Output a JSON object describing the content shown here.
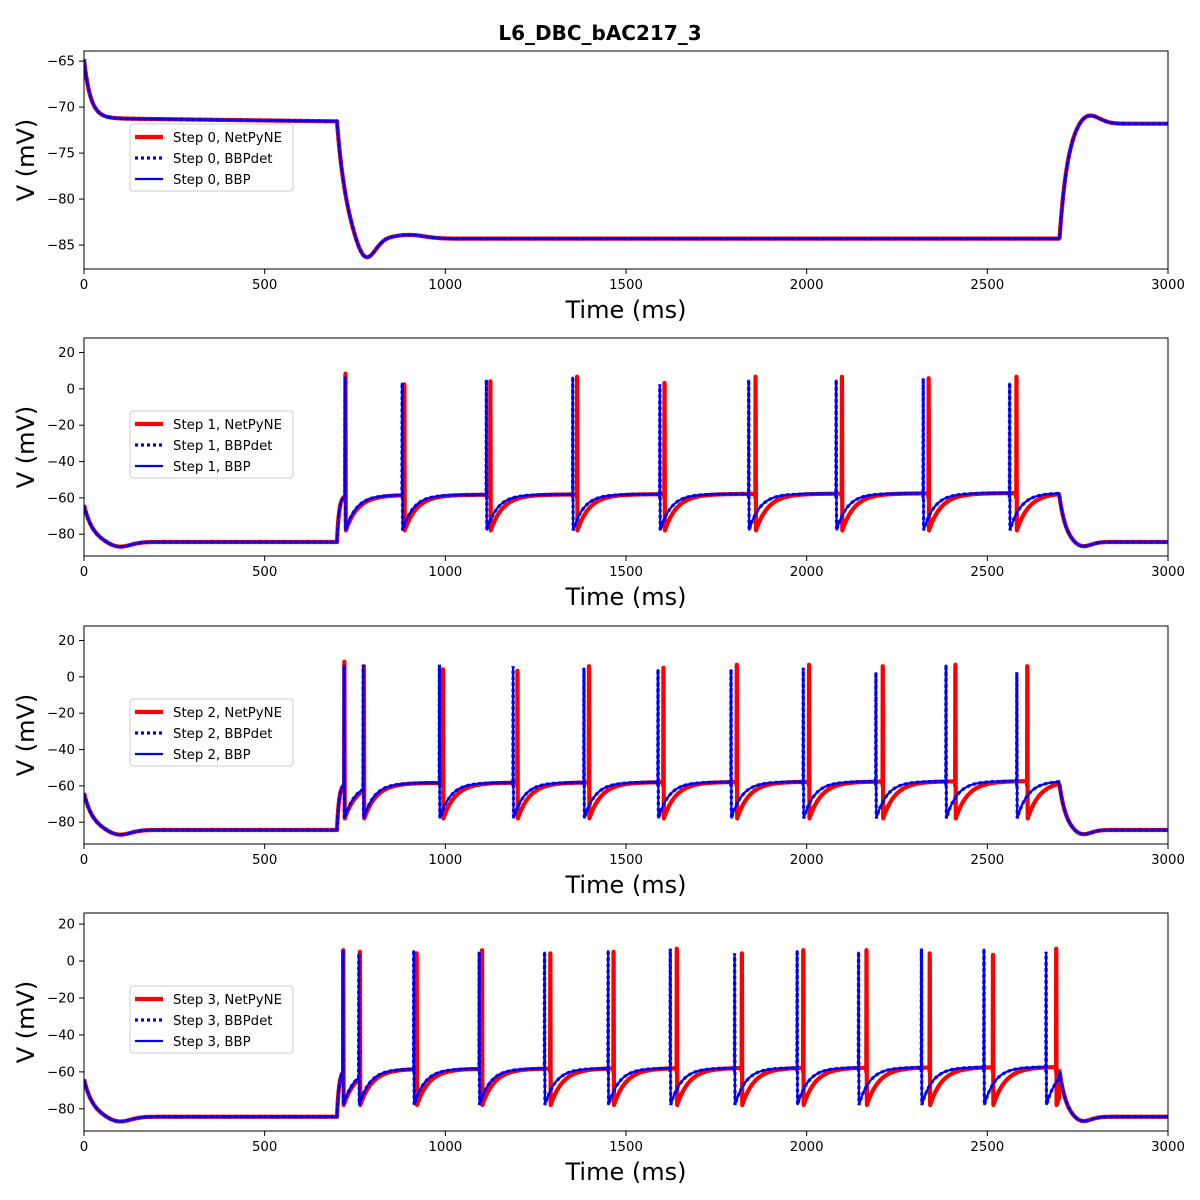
{
  "figure": {
    "title": "L6_DBC_bAC217_3"
  },
  "colors": {
    "netpyne": "#ff0000",
    "bbp": "#0000ff"
  },
  "chart_data": [
    {
      "type": "line",
      "title": "",
      "xlabel": "Time (ms)",
      "ylabel": "V (mV)",
      "xlim": [
        0,
        3000
      ],
      "ylim": [
        -87.6,
        -63.9
      ],
      "xticks": [
        0,
        500,
        1000,
        1500,
        2000,
        2500,
        3000
      ],
      "yticks": [
        -85,
        -80,
        -75,
        -70,
        -65
      ],
      "grid": false,
      "legend_position": "left",
      "rest_baseline": -71.2,
      "holding_level": -84.3,
      "stim_on": 700,
      "stim_off": 2700,
      "series": [
        {
          "name": "Step 0, NetPyNE",
          "spike_times": []
        },
        {
          "name": "Step 0, BBPdet",
          "spike_times": []
        },
        {
          "name": "Step 0, BBP",
          "spike_times": []
        }
      ]
    },
    {
      "type": "line",
      "title": "",
      "xlabel": "Time (ms)",
      "ylabel": "V (mV)",
      "xlim": [
        0,
        3000
      ],
      "ylim": [
        -92,
        28
      ],
      "xticks": [
        0,
        500,
        1000,
        1500,
        2000,
        2500,
        3000
      ],
      "yticks": [
        -80,
        -60,
        -40,
        -20,
        0,
        20
      ],
      "grid": false,
      "legend_position": "left",
      "stim_on": 700,
      "stim_off": 2700,
      "series": [
        {
          "name": "Step 1, NetPyNE",
          "spike_times": [
            723,
            886,
            1124,
            1364,
            1606,
            1858,
            2097,
            2337,
            2580
          ],
          "spike_peaks": [
            22,
            15,
            17,
            20,
            16,
            20,
            20,
            19,
            20
          ]
        },
        {
          "name": "Step 1, BBPdet",
          "spike_times": [
            722,
            880,
            1113,
            1352,
            1593,
            1839,
            2081,
            2322,
            2561
          ],
          "spike_peaks": [
            20,
            16,
            18,
            20,
            15,
            18,
            18,
            19,
            16
          ]
        },
        {
          "name": "Step 1, BBP",
          "spike_times": [
            722,
            880,
            1113,
            1352,
            1593,
            1839,
            2081,
            2322,
            2561
          ],
          "spike_peaks": [
            20,
            16,
            18,
            20,
            15,
            18,
            18,
            19,
            16
          ]
        }
      ]
    },
    {
      "type": "line",
      "title": "",
      "xlabel": "Time (ms)",
      "ylabel": "V (mV)",
      "xlim": [
        0,
        3000
      ],
      "ylim": [
        -92,
        28
      ],
      "xticks": [
        0,
        500,
        1000,
        1500,
        2000,
        2500,
        3000
      ],
      "yticks": [
        -80,
        -60,
        -40,
        -20,
        0,
        20
      ],
      "grid": false,
      "legend_position": "left",
      "stim_on": 700,
      "stim_off": 2700,
      "series": [
        {
          "name": "Step 2, NetPyNE",
          "spike_times": [
            720,
            774,
            993,
            1199,
            1397,
            1603,
            1806,
            2006,
            2210,
            2411,
            2610
          ],
          "spike_peaks": [
            22,
            19,
            17,
            16,
            19,
            18,
            20,
            20,
            19,
            20,
            19
          ]
        },
        {
          "name": "Step 2, BBPdet",
          "spike_times": [
            719,
            772,
            983,
            1187,
            1383,
            1588,
            1790,
            1990,
            2191,
            2385,
            2581
          ],
          "spike_peaks": [
            20,
            20,
            20,
            19,
            18,
            17,
            17,
            18,
            15,
            20,
            15
          ]
        },
        {
          "name": "Step 2, BBP",
          "spike_times": [
            719,
            772,
            983,
            1187,
            1383,
            1588,
            1790,
            1990,
            2191,
            2385,
            2581
          ],
          "spike_peaks": [
            20,
            20,
            20,
            19,
            18,
            17,
            17,
            18,
            15,
            20,
            15
          ]
        }
      ]
    },
    {
      "type": "line",
      "title": "",
      "xlabel": "Time (ms)",
      "ylabel": "V (mV)",
      "xlim": [
        0,
        3000
      ],
      "ylim": [
        -92,
        26
      ],
      "xticks": [
        0,
        500,
        1000,
        1500,
        2000,
        2500,
        3000
      ],
      "yticks": [
        -80,
        -60,
        -40,
        -20,
        0,
        20
      ],
      "grid": false,
      "legend_position": "left",
      "stim_on": 700,
      "stim_off": 2700,
      "series": [
        {
          "name": "Step 3, NetPyNE",
          "spike_times": [
            717,
            763,
            920,
            1101,
            1290,
            1465,
            1640,
            1820,
            1990,
            2165,
            2340,
            2515,
            2690
          ],
          "spike_peaks": [
            19,
            18,
            17,
            19,
            17,
            18,
            20,
            17,
            19,
            19,
            17,
            16,
            20
          ]
        },
        {
          "name": "Step 3, BBPdet",
          "spike_times": [
            716,
            760,
            912,
            1093,
            1274,
            1450,
            1622,
            1800,
            1973,
            2143,
            2317,
            2490,
            2662
          ],
          "spike_peaks": [
            19,
            17,
            19,
            18,
            18,
            19,
            20,
            17,
            19,
            18,
            20,
            20,
            18
          ]
        },
        {
          "name": "Step 3, BBP",
          "spike_times": [
            716,
            760,
            912,
            1093,
            1274,
            1450,
            1622,
            1800,
            1973,
            2143,
            2317,
            2490,
            2662
          ],
          "spike_peaks": [
            19,
            17,
            19,
            18,
            18,
            19,
            20,
            17,
            19,
            18,
            20,
            20,
            18
          ]
        }
      ]
    }
  ]
}
